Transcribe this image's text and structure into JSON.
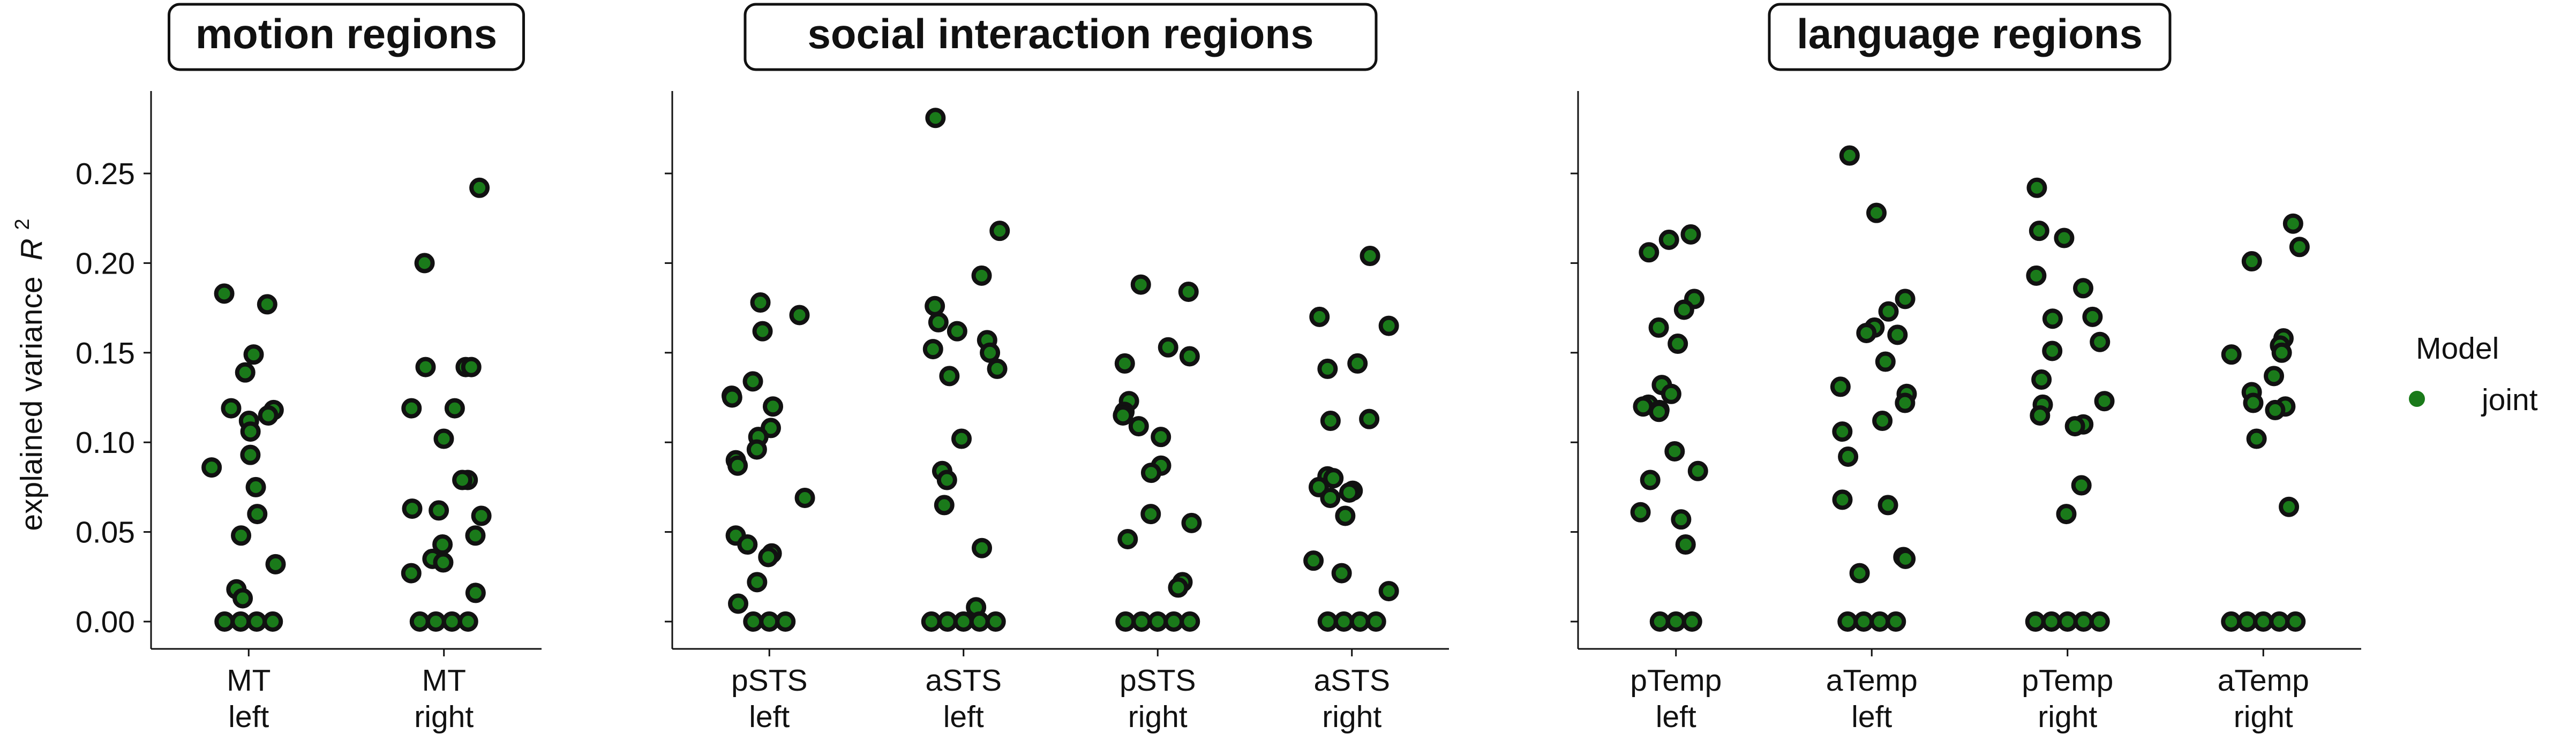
{
  "chart_data": {
    "type": "scatter",
    "layout": "faceted strip plot, 3 panels sharing the y axis",
    "ylabel_prefix": "explained variance",
    "ylabel_symbol": "R",
    "ylabel_exponent": "2",
    "ylim": [
      -0.013,
      0.29
    ],
    "yticks": [
      "0.00",
      "0.05",
      "0.10",
      "0.15",
      "0.20",
      "0.25"
    ],
    "grid": false,
    "legend": {
      "title": "Model",
      "entries": [
        {
          "label": "joint",
          "color": "#1a7a1a"
        }
      ],
      "placement": "right"
    },
    "point_fill": "#1a7a1a",
    "point_edge": "#111111",
    "panels": [
      {
        "title": "motion regions",
        "categories": [
          {
            "line1": "MT",
            "line2": "left",
            "values": [
              0.183,
              0.177,
              0.149,
              0.139,
              0.119,
              0.118,
              0.115,
              0.112,
              0.106,
              0.093,
              0.086,
              0.075,
              0.06,
              0.048,
              0.032,
              0.018,
              0.013,
              0.0,
              0.0,
              0.0,
              0.0
            ]
          },
          {
            "line1": "MT",
            "line2": "right",
            "values": [
              0.242,
              0.2,
              0.142,
              0.142,
              0.142,
              0.119,
              0.119,
              0.102,
              0.079,
              0.079,
              0.063,
              0.062,
              0.059,
              0.048,
              0.043,
              0.035,
              0.033,
              0.027,
              0.016,
              0.0,
              0.0,
              0.0,
              0.0
            ]
          }
        ]
      },
      {
        "title": "social interaction regions",
        "categories": [
          {
            "line1": "pSTS",
            "line2": "left",
            "values": [
              0.178,
              0.171,
              0.162,
              0.134,
              0.126,
              0.125,
              0.12,
              0.108,
              0.103,
              0.096,
              0.09,
              0.087,
              0.069,
              0.048,
              0.043,
              0.038,
              0.036,
              0.022,
              0.01,
              0.0,
              0.0,
              0.0
            ]
          },
          {
            "line1": "aSTS",
            "line2": "left",
            "values": [
              0.281,
              0.218,
              0.193,
              0.176,
              0.167,
              0.162,
              0.157,
              0.152,
              0.15,
              0.141,
              0.137,
              0.102,
              0.084,
              0.079,
              0.065,
              0.041,
              0.008,
              0.0,
              0.0,
              0.0,
              0.0,
              0.0
            ]
          },
          {
            "line1": "pSTS",
            "line2": "right",
            "values": [
              0.188,
              0.184,
              0.153,
              0.148,
              0.144,
              0.123,
              0.117,
              0.115,
              0.109,
              0.103,
              0.087,
              0.083,
              0.06,
              0.055,
              0.046,
              0.022,
              0.019,
              0.0,
              0.0,
              0.0,
              0.0,
              0.0
            ]
          },
          {
            "line1": "aSTS",
            "line2": "right",
            "values": [
              0.204,
              0.17,
              0.165,
              0.144,
              0.141,
              0.113,
              0.112,
              0.081,
              0.08,
              0.075,
              0.073,
              0.069,
              0.072,
              0.059,
              0.034,
              0.027,
              0.017,
              0.0,
              0.0,
              0.0,
              0.0
            ]
          }
        ]
      },
      {
        "title": "language regions",
        "categories": [
          {
            "line1": "pTemp",
            "line2": "left",
            "values": [
              0.216,
              0.213,
              0.206,
              0.18,
              0.174,
              0.164,
              0.155,
              0.132,
              0.127,
              0.121,
              0.12,
              0.118,
              0.117,
              0.095,
              0.084,
              0.079,
              0.061,
              0.057,
              0.043,
              0.0,
              0.0,
              0.0
            ]
          },
          {
            "line1": "aTemp",
            "line2": "left",
            "values": [
              0.26,
              0.228,
              0.18,
              0.173,
              0.164,
              0.161,
              0.16,
              0.145,
              0.131,
              0.127,
              0.122,
              0.112,
              0.106,
              0.092,
              0.068,
              0.065,
              0.036,
              0.035,
              0.027,
              0.0,
              0.0,
              0.0,
              0.0
            ]
          },
          {
            "line1": "pTemp",
            "line2": "right",
            "values": [
              0.242,
              0.218,
              0.214,
              0.193,
              0.186,
              0.17,
              0.169,
              0.156,
              0.151,
              0.135,
              0.123,
              0.121,
              0.115,
              0.11,
              0.109,
              0.076,
              0.06,
              0.0,
              0.0,
              0.0,
              0.0,
              0.0
            ]
          },
          {
            "line1": "aTemp",
            "line2": "right",
            "values": [
              0.222,
              0.209,
              0.201,
              0.158,
              0.154,
              0.15,
              0.149,
              0.137,
              0.128,
              0.122,
              0.12,
              0.118,
              0.102,
              0.064,
              0.0,
              0.0,
              0.0,
              0.0,
              0.0
            ]
          }
        ]
      }
    ]
  }
}
